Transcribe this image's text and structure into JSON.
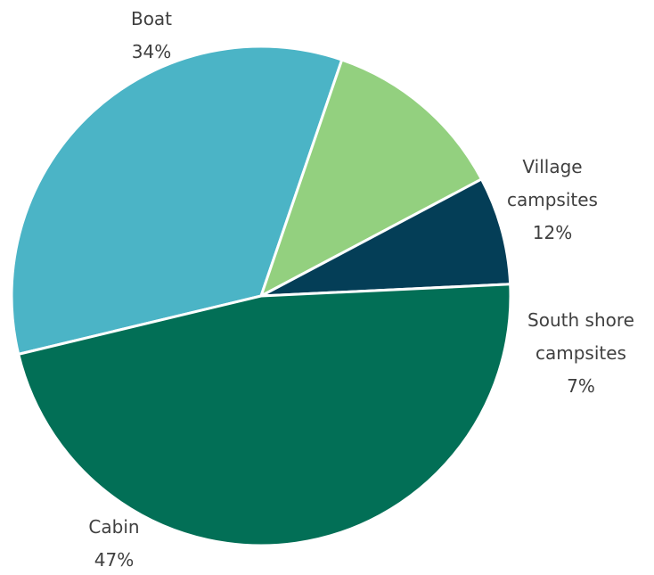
{
  "chart_data": {
    "type": "pie",
    "title": "",
    "slices": [
      {
        "label": "Cabin",
        "value": 47,
        "value_label": "47%",
        "color": "#026F56"
      },
      {
        "label": "Boat",
        "value": 34,
        "value_label": "34%",
        "color": "#4BB4C6"
      },
      {
        "label": "Village campsites",
        "value": 12,
        "value_label": "12%",
        "color": "#93D07F"
      },
      {
        "label": "South shore campsites",
        "value": 7,
        "value_label": "7%",
        "color": "#043E57"
      }
    ],
    "legend": "none",
    "slice_border_color": "#FFFFFF"
  }
}
